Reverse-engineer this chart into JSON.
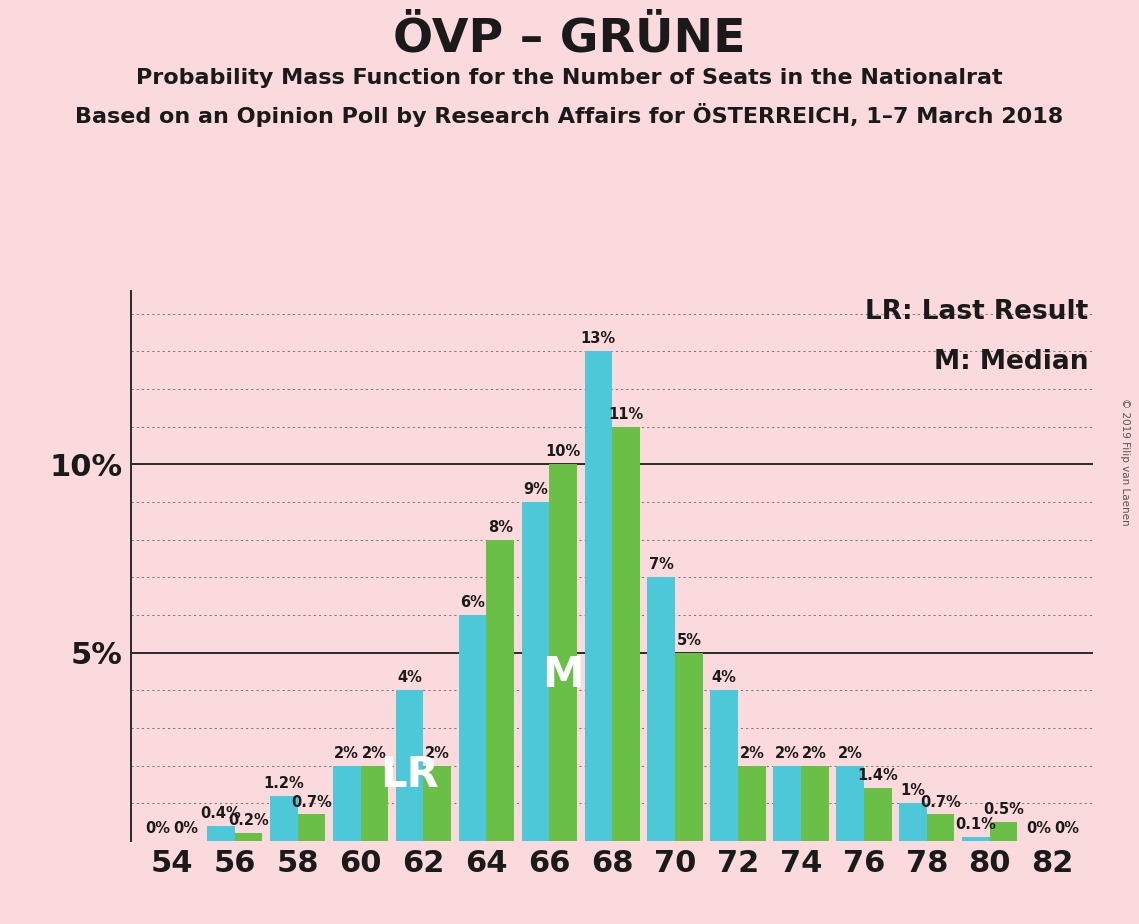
{
  "title": "ÖVP – GRÜNE",
  "subtitle1": "Probability Mass Function for the Number of Seats in the Nationalrat",
  "subtitle2": "Based on an Opinion Poll by Research Affairs for ÖSTERREICH, 1–7 March 2018",
  "copyright": "© 2019 Filip van Laenen",
  "legend_lr": "LR: Last Result",
  "legend_m": "M: Median",
  "background_color": "#fadadd",
  "bar_color_cyan": "#4dc8d8",
  "bar_color_green": "#6abf47",
  "seats": [
    54,
    56,
    58,
    60,
    62,
    64,
    66,
    68,
    70,
    72,
    74,
    76,
    78,
    80,
    82
  ],
  "cyan_values": [
    0.0,
    0.4,
    1.2,
    2.0,
    4.0,
    6.0,
    9.0,
    13.0,
    7.0,
    4.0,
    2.0,
    2.0,
    1.0,
    0.1,
    0.0
  ],
  "green_values": [
    0.0,
    0.2,
    0.7,
    2.0,
    2.0,
    8.0,
    10.0,
    11.0,
    5.0,
    2.0,
    2.0,
    1.4,
    0.7,
    0.5,
    0.0
  ],
  "lr_seat": 62,
  "median_seat": 66,
  "title_fontsize": 34,
  "subtitle_fontsize": 16,
  "axis_tick_fontsize": 22,
  "bar_label_fontsize": 10.5,
  "legend_fontsize": 19,
  "lr_m_fontsize": 30,
  "ylabel_fontsize": 22
}
